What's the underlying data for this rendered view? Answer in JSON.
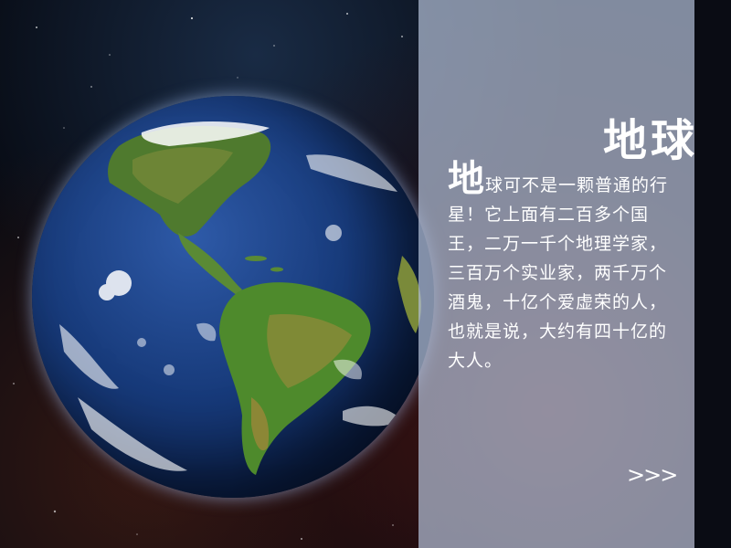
{
  "slide": {
    "title": "地球",
    "drop_cap": "地",
    "body": "球可不是一颗普通的行星！它上面有二百多个国王，二万一千个地理学家，三百万个实业家，两千万个酒鬼，十亿个爱虚荣的人，也就是说，大约有四十亿的大人。",
    "next_label": ">>>"
  },
  "image": {
    "subject": "earth-globe",
    "panel_color": "#b2bed6",
    "text_color": "#ffffff"
  }
}
